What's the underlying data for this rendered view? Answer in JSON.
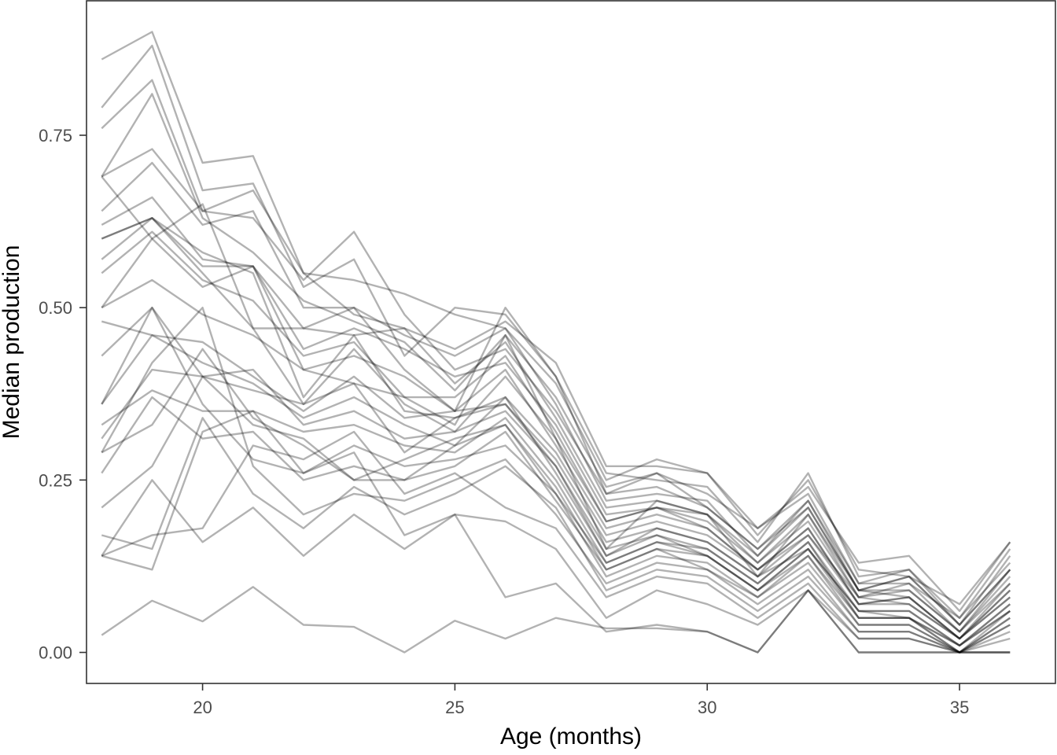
{
  "chart_data": {
    "type": "line",
    "title": "",
    "xlabel": "Age (months)",
    "ylabel": "Median production",
    "xlim": [
      17.7,
      36.9
    ],
    "ylim": [
      -0.045,
      0.945
    ],
    "x_ticks": [
      20,
      25,
      30,
      35
    ],
    "x_tick_labels": [
      "20",
      "25",
      "30",
      "35"
    ],
    "y_ticks": [
      0.0,
      0.25,
      0.5,
      0.75
    ],
    "y_tick_labels": [
      "0.00",
      "0.25",
      "0.50",
      "0.75"
    ],
    "grid": false,
    "legend": "none",
    "line_color": "#000000",
    "line_opacity": 0.3,
    "x": [
      18,
      19,
      20,
      21,
      22,
      23,
      24,
      25,
      26,
      27,
      28,
      29,
      30,
      31,
      32,
      33,
      34,
      35,
      36
    ],
    "series": [
      {
        "values": [
          0.86,
          0.9,
          0.71,
          0.72,
          0.55,
          0.49,
          0.47,
          0.44,
          0.48,
          0.42,
          0.27,
          0.27,
          0.26,
          0.18,
          0.24,
          0.13,
          0.14,
          0.06,
          0.16
        ]
      },
      {
        "values": [
          0.79,
          0.88,
          0.67,
          0.68,
          0.53,
          0.57,
          0.43,
          0.5,
          0.49,
          0.4,
          0.26,
          0.25,
          0.24,
          0.16,
          0.26,
          0.11,
          0.12,
          0.05,
          0.15
        ]
      },
      {
        "values": [
          0.76,
          0.83,
          0.64,
          0.67,
          0.55,
          0.54,
          0.52,
          0.49,
          0.47,
          0.39,
          0.25,
          0.28,
          0.26,
          0.17,
          0.25,
          0.12,
          0.11,
          0.07,
          0.16
        ]
      },
      {
        "values": [
          0.69,
          0.81,
          0.63,
          0.58,
          0.51,
          0.48,
          0.45,
          0.38,
          0.46,
          0.37,
          0.24,
          0.26,
          0.23,
          0.18,
          0.23,
          0.1,
          0.12,
          0.04,
          0.14
        ]
      },
      {
        "values": [
          0.69,
          0.73,
          0.64,
          0.63,
          0.54,
          0.61,
          0.49,
          0.41,
          0.44,
          0.35,
          0.23,
          0.24,
          0.21,
          0.15,
          0.22,
          0.1,
          0.1,
          0.05,
          0.13
        ]
      },
      {
        "values": [
          0.64,
          0.71,
          0.62,
          0.64,
          0.5,
          0.5,
          0.46,
          0.43,
          0.47,
          0.36,
          0.22,
          0.23,
          0.22,
          0.14,
          0.21,
          0.09,
          0.11,
          0.04,
          0.12
        ]
      },
      {
        "values": [
          0.62,
          0.66,
          0.57,
          0.56,
          0.47,
          0.46,
          0.47,
          0.39,
          0.45,
          0.34,
          0.21,
          0.22,
          0.2,
          0.14,
          0.22,
          0.09,
          0.09,
          0.03,
          0.12
        ]
      },
      {
        "values": [
          0.6,
          0.63,
          0.56,
          0.56,
          0.44,
          0.47,
          0.44,
          0.4,
          0.42,
          0.33,
          0.2,
          0.21,
          0.2,
          0.13,
          0.2,
          0.08,
          0.1,
          0.03,
          0.11
        ]
      },
      {
        "values": [
          0.57,
          0.63,
          0.55,
          0.47,
          0.47,
          0.5,
          0.41,
          0.35,
          0.5,
          0.4,
          0.23,
          0.26,
          0.21,
          0.15,
          0.21,
          0.09,
          0.11,
          0.04,
          0.12
        ]
      },
      {
        "values": [
          0.55,
          0.61,
          0.54,
          0.51,
          0.43,
          0.45,
          0.37,
          0.37,
          0.43,
          0.32,
          0.19,
          0.21,
          0.19,
          0.13,
          0.19,
          0.08,
          0.09,
          0.03,
          0.1
        ]
      },
      {
        "values": [
          0.5,
          0.54,
          0.49,
          0.46,
          0.41,
          0.43,
          0.4,
          0.35,
          0.41,
          0.3,
          0.18,
          0.2,
          0.18,
          0.12,
          0.18,
          0.07,
          0.08,
          0.02,
          0.09
        ]
      },
      {
        "values": [
          0.69,
          0.6,
          0.53,
          0.56,
          0.41,
          0.39,
          0.37,
          0.33,
          0.46,
          0.31,
          0.15,
          0.22,
          0.2,
          0.11,
          0.2,
          0.09,
          0.08,
          0.02,
          0.1
        ]
      },
      {
        "values": [
          0.6,
          0.63,
          0.58,
          0.55,
          0.37,
          0.46,
          0.35,
          0.34,
          0.37,
          0.29,
          0.17,
          0.19,
          0.17,
          0.12,
          0.18,
          0.07,
          0.08,
          0.02,
          0.09
        ]
      },
      {
        "values": [
          0.5,
          0.6,
          0.65,
          0.47,
          0.36,
          0.44,
          0.36,
          0.32,
          0.4,
          0.31,
          0.19,
          0.21,
          0.18,
          0.12,
          0.17,
          0.08,
          0.07,
          0.02,
          0.08
        ]
      },
      {
        "values": [
          0.48,
          0.46,
          0.45,
          0.4,
          0.35,
          0.4,
          0.34,
          0.35,
          0.36,
          0.28,
          0.16,
          0.18,
          0.16,
          0.11,
          0.17,
          0.07,
          0.07,
          0.02,
          0.08
        ]
      },
      {
        "values": [
          0.43,
          0.5,
          0.4,
          0.41,
          0.33,
          0.35,
          0.31,
          0.32,
          0.35,
          0.27,
          0.15,
          0.17,
          0.15,
          0.1,
          0.16,
          0.06,
          0.06,
          0.01,
          0.07
        ]
      },
      {
        "values": [
          0.36,
          0.46,
          0.42,
          0.39,
          0.34,
          0.37,
          0.33,
          0.3,
          0.37,
          0.26,
          0.14,
          0.18,
          0.16,
          0.11,
          0.15,
          0.06,
          0.06,
          0.01,
          0.07
        ]
      },
      {
        "values": [
          0.33,
          0.38,
          0.35,
          0.35,
          0.32,
          0.33,
          0.3,
          0.29,
          0.34,
          0.25,
          0.13,
          0.16,
          0.15,
          0.1,
          0.16,
          0.05,
          0.05,
          0.01,
          0.06
        ]
      },
      {
        "values": [
          0.31,
          0.41,
          0.4,
          0.38,
          0.36,
          0.39,
          0.29,
          0.34,
          0.36,
          0.27,
          0.14,
          0.17,
          0.14,
          0.09,
          0.15,
          0.06,
          0.05,
          0.0,
          0.06
        ]
      },
      {
        "values": [
          0.29,
          0.33,
          0.44,
          0.34,
          0.3,
          0.25,
          0.28,
          0.31,
          0.33,
          0.24,
          0.12,
          0.15,
          0.14,
          0.09,
          0.14,
          0.05,
          0.05,
          0.0,
          0.05
        ]
      },
      {
        "values": [
          0.36,
          0.5,
          0.36,
          0.28,
          0.26,
          0.3,
          0.27,
          0.28,
          0.3,
          0.23,
          0.11,
          0.14,
          0.13,
          0.08,
          0.14,
          0.04,
          0.04,
          0.0,
          0.05
        ]
      },
      {
        "values": [
          0.26,
          0.37,
          0.31,
          0.32,
          0.25,
          0.27,
          0.25,
          0.27,
          0.32,
          0.22,
          0.12,
          0.15,
          0.12,
          0.08,
          0.13,
          0.04,
          0.04,
          0.0,
          0.04
        ]
      },
      {
        "values": [
          0.21,
          0.27,
          0.4,
          0.33,
          0.31,
          0.25,
          0.25,
          0.3,
          0.33,
          0.23,
          0.13,
          0.16,
          0.14,
          0.09,
          0.15,
          0.05,
          0.05,
          0.01,
          0.06
        ]
      },
      {
        "values": [
          0.29,
          0.42,
          0.5,
          0.27,
          0.2,
          0.23,
          0.22,
          0.25,
          0.28,
          0.2,
          0.1,
          0.13,
          0.12,
          0.07,
          0.12,
          0.03,
          0.03,
          0.0,
          0.04
        ]
      },
      {
        "values": [
          0.17,
          0.15,
          0.34,
          0.23,
          0.18,
          0.24,
          0.2,
          0.23,
          0.27,
          0.21,
          0.09,
          0.12,
          0.11,
          0.06,
          0.11,
          0.03,
          0.03,
          0.0,
          0.03
        ]
      },
      {
        "values": [
          0.14,
          0.17,
          0.18,
          0.3,
          0.28,
          0.32,
          0.23,
          0.26,
          0.21,
          0.18,
          0.08,
          0.11,
          0.1,
          0.05,
          0.1,
          0.02,
          0.02,
          0.0,
          0.02
        ]
      },
      {
        "values": [
          0.14,
          0.25,
          0.16,
          0.21,
          0.14,
          0.2,
          0.15,
          0.2,
          0.19,
          0.15,
          0.05,
          0.09,
          0.07,
          0.04,
          0.09,
          0.02,
          0.02,
          0.0,
          0.0
        ]
      },
      {
        "values": [
          0.14,
          0.12,
          0.32,
          0.35,
          0.26,
          0.29,
          0.17,
          0.2,
          0.08,
          0.1,
          0.03,
          0.04,
          0.03,
          0.0,
          0.09,
          0.0,
          0.0,
          0.0,
          0.0
        ]
      },
      {
        "values": [
          0.025,
          0.075,
          0.045,
          0.095,
          0.04,
          0.037,
          0.0,
          0.046,
          0.02,
          0.05,
          0.035,
          0.035,
          0.03,
          0.0,
          0.09,
          0.0,
          0.0,
          0.0,
          0.0
        ]
      }
    ]
  }
}
